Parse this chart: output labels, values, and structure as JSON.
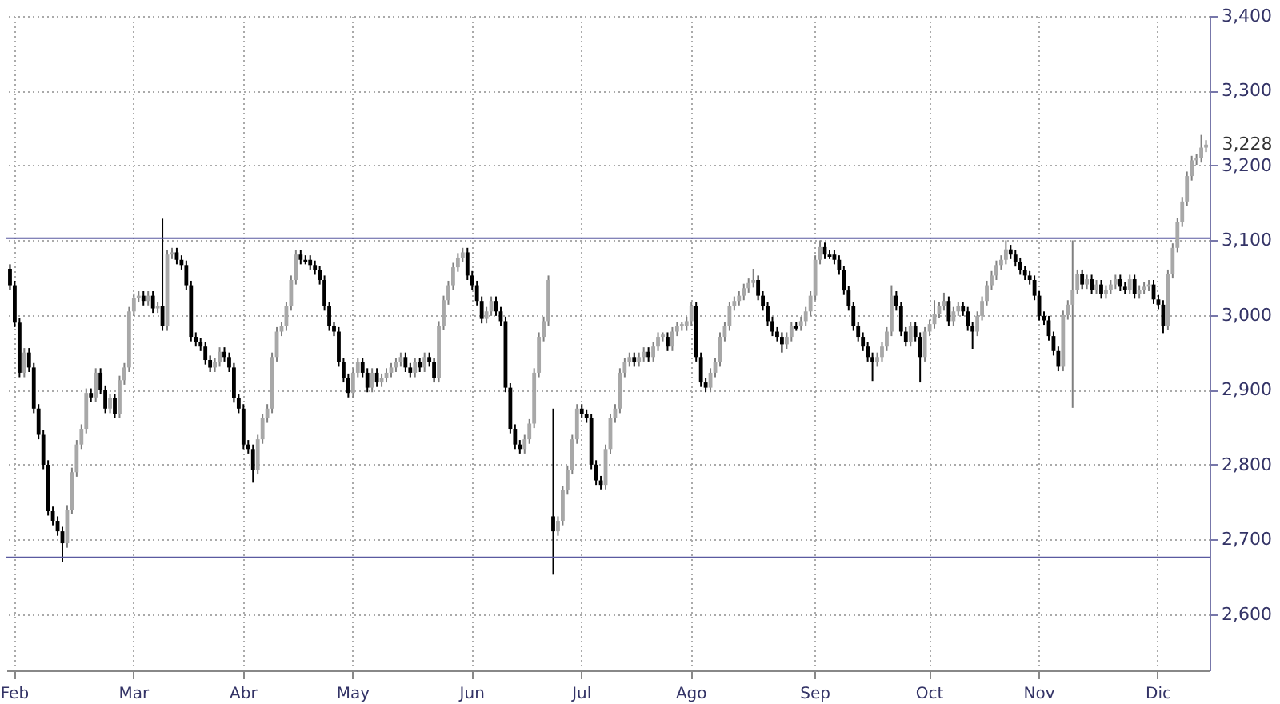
{
  "chart_data": {
    "type": "candlestick",
    "categories": [
      null,
      "Feb",
      null,
      null,
      null,
      null,
      null,
      null,
      null,
      null,
      null,
      null,
      null,
      null,
      null,
      null,
      null,
      null,
      null,
      null,
      null,
      null,
      null,
      null,
      null,
      null,
      "Mar",
      null,
      null,
      null,
      null,
      null,
      null,
      null,
      null,
      null,
      null,
      null,
      null,
      null,
      null,
      null,
      null,
      null,
      null,
      null,
      null,
      null,
      null,
      "Abr",
      null,
      null,
      null,
      null,
      null,
      null,
      null,
      null,
      null,
      null,
      null,
      null,
      null,
      null,
      null,
      null,
      null,
      null,
      null,
      null,
      null,
      null,
      "May",
      null,
      null,
      null,
      null,
      null,
      null,
      null,
      null,
      null,
      null,
      null,
      null,
      null,
      null,
      null,
      null,
      null,
      null,
      null,
      null,
      null,
      null,
      null,
      null,
      "Jun",
      null,
      null,
      null,
      null,
      null,
      null,
      null,
      null,
      null,
      null,
      null,
      null,
      null,
      null,
      null,
      null,
      null,
      null,
      null,
      null,
      null,
      null,
      "Jul",
      null,
      null,
      null,
      null,
      null,
      null,
      null,
      null,
      null,
      null,
      null,
      null,
      null,
      null,
      null,
      null,
      null,
      null,
      null,
      null,
      null,
      null,
      "Ago",
      null,
      null,
      null,
      null,
      null,
      null,
      null,
      null,
      null,
      null,
      null,
      null,
      null,
      null,
      null,
      null,
      null,
      null,
      null,
      null,
      null,
      null,
      null,
      null,
      null,
      "Sep",
      null,
      null,
      null,
      null,
      null,
      null,
      null,
      null,
      null,
      null,
      null,
      null,
      null,
      null,
      null,
      null,
      null,
      null,
      null,
      null,
      null,
      null,
      null,
      "Oct",
      null,
      null,
      null,
      null,
      null,
      null,
      null,
      null,
      null,
      null,
      null,
      null,
      null,
      null,
      null,
      null,
      null,
      null,
      null,
      null,
      null,
      null,
      "Nov",
      null,
      null,
      null,
      null,
      null,
      null,
      null,
      null,
      null,
      null,
      null,
      null,
      null,
      null,
      null,
      null,
      null,
      null,
      null,
      null,
      null,
      null,
      null,
      null,
      "Dic",
      null,
      null,
      null,
      null,
      null,
      null,
      null,
      null,
      null,
      null
    ],
    "ohlc": [
      [
        3062,
        3068,
        3034,
        3040
      ],
      [
        3040,
        3046,
        2984,
        2990
      ],
      [
        2990,
        2996,
        2917,
        2923
      ],
      [
        2923,
        2956,
        2917,
        2950
      ],
      [
        2950,
        2956,
        2924,
        2930
      ],
      [
        2930,
        2936,
        2869,
        2875
      ],
      [
        2875,
        2881,
        2834,
        2840
      ],
      [
        2840,
        2846,
        2794,
        2800
      ],
      [
        2800,
        2806,
        2732,
        2738
      ],
      [
        2738,
        2744,
        2719,
        2725
      ],
      [
        2725,
        2731,
        2705,
        2711
      ],
      [
        2711,
        2717,
        2670,
        2695
      ],
      [
        2695,
        2746,
        2689,
        2740
      ],
      [
        2740,
        2796,
        2734,
        2790
      ],
      [
        2790,
        2833,
        2784,
        2827
      ],
      [
        2827,
        2854,
        2821,
        2848
      ],
      [
        2848,
        2902,
        2842,
        2896
      ],
      [
        2896,
        2902,
        2884,
        2890
      ],
      [
        2890,
        2929,
        2884,
        2923
      ],
      [
        2923,
        2929,
        2894,
        2900
      ],
      [
        2900,
        2906,
        2869,
        2875
      ],
      [
        2875,
        2895,
        2869,
        2889
      ],
      [
        2889,
        2895,
        2862,
        2868
      ],
      [
        2868,
        2919,
        2862,
        2913
      ],
      [
        2913,
        2936,
        2907,
        2930
      ],
      [
        2930,
        3011,
        2924,
        3005
      ],
      [
        3005,
        3029,
        2999,
        3023
      ],
      [
        3023,
        3032,
        3017,
        3026
      ],
      [
        3026,
        3032,
        3013,
        3019
      ],
      [
        3019,
        3032,
        3013,
        3026
      ],
      [
        3026,
        3032,
        3003,
        3009
      ],
      [
        3009,
        3018,
        3003,
        3012
      ],
      [
        3012,
        3129,
        2979,
        2985
      ],
      [
        2985,
        3087,
        2979,
        3081
      ],
      [
        3081,
        3090,
        3075,
        3084
      ],
      [
        3084,
        3090,
        3068,
        3074
      ],
      [
        3074,
        3080,
        3061,
        3067
      ],
      [
        3067,
        3073,
        3034,
        3040
      ],
      [
        3040,
        3046,
        2965,
        2971
      ],
      [
        2971,
        2977,
        2958,
        2964
      ],
      [
        2964,
        2970,
        2952,
        2958
      ],
      [
        2958,
        2964,
        2934,
        2940
      ],
      [
        2940,
        2946,
        2924,
        2930
      ],
      [
        2930,
        2943,
        2924,
        2937
      ],
      [
        2937,
        2957,
        2931,
        2951
      ],
      [
        2951,
        2957,
        2938,
        2944
      ],
      [
        2944,
        2950,
        2924,
        2930
      ],
      [
        2930,
        2936,
        2883,
        2889
      ],
      [
        2889,
        2895,
        2869,
        2875
      ],
      [
        2875,
        2881,
        2821,
        2827
      ],
      [
        2827,
        2833,
        2815,
        2821
      ],
      [
        2821,
        2827,
        2776,
        2793
      ],
      [
        2793,
        2840,
        2787,
        2834
      ],
      [
        2834,
        2868,
        2828,
        2862
      ],
      [
        2862,
        2881,
        2856,
        2875
      ],
      [
        2875,
        2950,
        2869,
        2944
      ],
      [
        2944,
        2984,
        2938,
        2978
      ],
      [
        2978,
        2991,
        2972,
        2985
      ],
      [
        2985,
        3018,
        2979,
        3012
      ],
      [
        3012,
        3053,
        3006,
        3047
      ],
      [
        3047,
        3087,
        3041,
        3081
      ],
      [
        3081,
        3087,
        3068,
        3074
      ],
      [
        3074,
        3080,
        3068,
        3071
      ],
      [
        3074,
        3080,
        3061,
        3067
      ],
      [
        3067,
        3073,
        3054,
        3060
      ],
      [
        3060,
        3066,
        3041,
        3047
      ],
      [
        3047,
        3053,
        3006,
        3012
      ],
      [
        3012,
        3018,
        2979,
        2985
      ],
      [
        2985,
        2991,
        2972,
        2978
      ],
      [
        2978,
        2984,
        2931,
        2937
      ],
      [
        2937,
        2943,
        2910,
        2916
      ],
      [
        2916,
        2922,
        2890,
        2896
      ],
      [
        2896,
        2929,
        2890,
        2923
      ],
      [
        2923,
        2943,
        2917,
        2937
      ],
      [
        2937,
        2943,
        2917,
        2923
      ],
      [
        2923,
        2929,
        2897,
        2903
      ],
      [
        2903,
        2929,
        2897,
        2923
      ],
      [
        2923,
        2929,
        2904,
        2910
      ],
      [
        2910,
        2922,
        2904,
        2916
      ],
      [
        2916,
        2929,
        2910,
        2923
      ],
      [
        2923,
        2936,
        2917,
        2930
      ],
      [
        2930,
        2943,
        2924,
        2937
      ],
      [
        2937,
        2950,
        2931,
        2944
      ],
      [
        2944,
        2950,
        2924,
        2930
      ],
      [
        2930,
        2936,
        2917,
        2923
      ],
      [
        2923,
        2943,
        2917,
        2937
      ],
      [
        2937,
        2943,
        2924,
        2930
      ],
      [
        2930,
        2950,
        2924,
        2944
      ],
      [
        2944,
        2950,
        2931,
        2937
      ],
      [
        2937,
        2943,
        2910,
        2916
      ],
      [
        2916,
        2992,
        2910,
        2986
      ],
      [
        2986,
        3026,
        2980,
        3020
      ],
      [
        3020,
        3046,
        3014,
        3040
      ],
      [
        3040,
        3070,
        3034,
        3064
      ],
      [
        3064,
        3083,
        3058,
        3077
      ],
      [
        3077,
        3090,
        3071,
        3084
      ],
      [
        3084,
        3090,
        3047,
        3053
      ],
      [
        3053,
        3059,
        3034,
        3040
      ],
      [
        3040,
        3046,
        3013,
        3019
      ],
      [
        3019,
        3025,
        2989,
        2995
      ],
      [
        2995,
        3011,
        2989,
        3005
      ],
      [
        3005,
        3025,
        2999,
        3019
      ],
      [
        3019,
        3025,
        2999,
        3005
      ],
      [
        3005,
        3011,
        2986,
        2992
      ],
      [
        2992,
        2998,
        2897,
        2903
      ],
      [
        2903,
        2909,
        2842,
        2848
      ],
      [
        2848,
        2854,
        2821,
        2827
      ],
      [
        2827,
        2833,
        2815,
        2821
      ],
      [
        2821,
        2840,
        2815,
        2834
      ],
      [
        2834,
        2861,
        2828,
        2855
      ],
      [
        2855,
        2929,
        2849,
        2923
      ],
      [
        2923,
        2977,
        2917,
        2971
      ],
      [
        2971,
        2998,
        2965,
        2992
      ],
      [
        2992,
        3053,
        2986,
        3047
      ],
      [
        2731,
        2875,
        2653,
        2711
      ],
      [
        2711,
        2731,
        2705,
        2725
      ],
      [
        2725,
        2772,
        2719,
        2766
      ],
      [
        2766,
        2799,
        2760,
        2793
      ],
      [
        2793,
        2840,
        2787,
        2834
      ],
      [
        2834,
        2881,
        2828,
        2875
      ],
      [
        2875,
        2881,
        2862,
        2868
      ],
      [
        2868,
        2874,
        2856,
        2862
      ],
      [
        2862,
        2868,
        2794,
        2800
      ],
      [
        2800,
        2806,
        2773,
        2779
      ],
      [
        2779,
        2785,
        2767,
        2773
      ],
      [
        2773,
        2827,
        2767,
        2821
      ],
      [
        2821,
        2868,
        2815,
        2862
      ],
      [
        2862,
        2881,
        2856,
        2875
      ],
      [
        2875,
        2929,
        2869,
        2923
      ],
      [
        2923,
        2943,
        2917,
        2937
      ],
      [
        2937,
        2950,
        2931,
        2944
      ],
      [
        2944,
        2950,
        2931,
        2937
      ],
      [
        2937,
        2950,
        2931,
        2944
      ],
      [
        2944,
        2957,
        2938,
        2951
      ],
      [
        2951,
        2957,
        2938,
        2944
      ],
      [
        2944,
        2964,
        2938,
        2958
      ],
      [
        2958,
        2977,
        2952,
        2971
      ],
      [
        2971,
        2977,
        2965,
        2974
      ],
      [
        2971,
        2977,
        2952,
        2958
      ],
      [
        2958,
        2984,
        2952,
        2978
      ],
      [
        2978,
        2991,
        2972,
        2985
      ],
      [
        2985,
        2991,
        2979,
        2988
      ],
      [
        2985,
        2998,
        2979,
        2992
      ],
      [
        2992,
        3018,
        2986,
        3012
      ],
      [
        3012,
        3018,
        2938,
        2944
      ],
      [
        2944,
        2950,
        2904,
        2910
      ],
      [
        2910,
        2916,
        2897,
        2903
      ],
      [
        2903,
        2929,
        2897,
        2923
      ],
      [
        2923,
        2943,
        2917,
        2937
      ],
      [
        2937,
        2977,
        2931,
        2971
      ],
      [
        2971,
        2991,
        2965,
        2985
      ],
      [
        2985,
        3018,
        2979,
        3012
      ],
      [
        3012,
        3025,
        3006,
        3019
      ],
      [
        3019,
        3032,
        3013,
        3026
      ],
      [
        3026,
        3042,
        3020,
        3036
      ],
      [
        3036,
        3049,
        3030,
        3043
      ],
      [
        3043,
        3062,
        3037,
        3047
      ],
      [
        3047,
        3053,
        3020,
        3026
      ],
      [
        3026,
        3032,
        3006,
        3012
      ],
      [
        3012,
        3018,
        2986,
        2992
      ],
      [
        2992,
        2998,
        2972,
        2978
      ],
      [
        2978,
        2984,
        2965,
        2971
      ],
      [
        2971,
        2977,
        2950,
        2961
      ],
      [
        2961,
        2977,
        2955,
        2971
      ],
      [
        2971,
        2991,
        2965,
        2985
      ],
      [
        2985,
        2991,
        2979,
        2982
      ],
      [
        2985,
        2998,
        2979,
        2992
      ],
      [
        2992,
        3011,
        2986,
        3005
      ],
      [
        3005,
        3032,
        2999,
        3026
      ],
      [
        3026,
        3080,
        3020,
        3074
      ],
      [
        3074,
        3100,
        3068,
        3091
      ],
      [
        3091,
        3097,
        3075,
        3081
      ],
      [
        3081,
        3087,
        3075,
        3078
      ],
      [
        3081,
        3087,
        3068,
        3074
      ],
      [
        3074,
        3080,
        3054,
        3060
      ],
      [
        3060,
        3066,
        3027,
        3033
      ],
      [
        3033,
        3039,
        3006,
        3012
      ],
      [
        3012,
        3018,
        2979,
        2985
      ],
      [
        2985,
        2991,
        2965,
        2971
      ],
      [
        2971,
        2977,
        2952,
        2958
      ],
      [
        2958,
        2964,
        2938,
        2944
      ],
      [
        2944,
        2950,
        2912,
        2937
      ],
      [
        2937,
        2950,
        2931,
        2944
      ],
      [
        2944,
        2964,
        2938,
        2958
      ],
      [
        2958,
        2984,
        2952,
        2978
      ],
      [
        2978,
        3040,
        2972,
        3026
      ],
      [
        3026,
        3032,
        3006,
        3012
      ],
      [
        3012,
        3018,
        2972,
        2978
      ],
      [
        2978,
        2984,
        2958,
        2964
      ],
      [
        2964,
        2991,
        2958,
        2985
      ],
      [
        2985,
        2991,
        2965,
        2971
      ],
      [
        2971,
        2977,
        2910,
        2944
      ],
      [
        2944,
        2984,
        2938,
        2978
      ],
      [
        2978,
        2994,
        2972,
        2988
      ],
      [
        2988,
        3020,
        2982,
        3002
      ],
      [
        3002,
        3018,
        2996,
        3012
      ],
      [
        3012,
        3030,
        3006,
        3019
      ],
      [
        3019,
        3025,
        2986,
        2992
      ],
      [
        2992,
        3011,
        2986,
        3005
      ],
      [
        3005,
        3018,
        2999,
        3012
      ],
      [
        3012,
        3018,
        2999,
        3005
      ],
      [
        3005,
        3011,
        2979,
        2985
      ],
      [
        2985,
        2991,
        2955,
        2978
      ],
      [
        2978,
        3005,
        2972,
        2999
      ],
      [
        2999,
        3025,
        2993,
        3019
      ],
      [
        3019,
        3046,
        3013,
        3040
      ],
      [
        3040,
        3059,
        3034,
        3053
      ],
      [
        3053,
        3073,
        3047,
        3067
      ],
      [
        3067,
        3080,
        3061,
        3074
      ],
      [
        3074,
        3100,
        3068,
        3088
      ],
      [
        3088,
        3094,
        3075,
        3081
      ],
      [
        3081,
        3087,
        3065,
        3071
      ],
      [
        3071,
        3077,
        3054,
        3060
      ],
      [
        3060,
        3066,
        3047,
        3053
      ],
      [
        3053,
        3059,
        3041,
        3047
      ],
      [
        3047,
        3053,
        3020,
        3026
      ],
      [
        3026,
        3032,
        2993,
        2999
      ],
      [
        2999,
        3005,
        2987,
        2993
      ],
      [
        2993,
        2999,
        2966,
        2972
      ],
      [
        2972,
        2978,
        2946,
        2952
      ],
      [
        2952,
        2958,
        2925,
        2931
      ],
      [
        2931,
        3006,
        2925,
        3000
      ],
      [
        3000,
        3020,
        2994,
        3014
      ],
      [
        3014,
        3100,
        2876,
        3034
      ],
      [
        3034,
        3061,
        3028,
        3055
      ],
      [
        3055,
        3061,
        3035,
        3041
      ],
      [
        3041,
        3054,
        3035,
        3048
      ],
      [
        3048,
        3054,
        3028,
        3034
      ],
      [
        3034,
        3047,
        3028,
        3041
      ],
      [
        3041,
        3047,
        3022,
        3028
      ],
      [
        3028,
        3040,
        3022,
        3034
      ],
      [
        3034,
        3047,
        3028,
        3041
      ],
      [
        3041,
        3054,
        3035,
        3048
      ],
      [
        3048,
        3054,
        3032,
        3038
      ],
      [
        3038,
        3044,
        3028,
        3034
      ],
      [
        3034,
        3054,
        3028,
        3048
      ],
      [
        3048,
        3054,
        3022,
        3028
      ],
      [
        3028,
        3040,
        3022,
        3034
      ],
      [
        3034,
        3044,
        3028,
        3038
      ],
      [
        3038,
        3047,
        3032,
        3041
      ],
      [
        3041,
        3047,
        3015,
        3021
      ],
      [
        3021,
        3027,
        3008,
        3014
      ],
      [
        3014,
        3020,
        2976,
        2986
      ],
      [
        2986,
        3061,
        2980,
        3055
      ],
      [
        3055,
        3096,
        3049,
        3090
      ],
      [
        3090,
        3130,
        3084,
        3124
      ],
      [
        3124,
        3158,
        3118,
        3152
      ],
      [
        3152,
        3192,
        3146,
        3186
      ],
      [
        3186,
        3213,
        3180,
        3207
      ],
      [
        3207,
        3216,
        3201,
        3210
      ],
      [
        3210,
        3241,
        3204,
        3224
      ],
      [
        3224,
        3234,
        3218,
        3228
      ]
    ],
    "ylim": [
      2525,
      3400
    ],
    "yticks": [
      {
        "value": 2600,
        "label": "2,600"
      },
      {
        "value": 2700,
        "label": "2,700"
      },
      {
        "value": 2800,
        "label": "2,800"
      },
      {
        "value": 2900,
        "label": "2,900"
      },
      {
        "value": 3000,
        "label": "3,000"
      },
      {
        "value": 3100,
        "label": "3,100"
      },
      {
        "value": 3200,
        "label": "3,200"
      },
      {
        "value": 3300,
        "label": "3,300"
      },
      {
        "value": 3400,
        "label": "3,400"
      }
    ],
    "grid": true,
    "ref_lines": [
      {
        "axis": "y",
        "value": 3103,
        "color": "#5a5aa0"
      },
      {
        "axis": "y",
        "value": 2676,
        "color": "#5a5aa0"
      }
    ],
    "annotations": [
      "3,228"
    ]
  }
}
